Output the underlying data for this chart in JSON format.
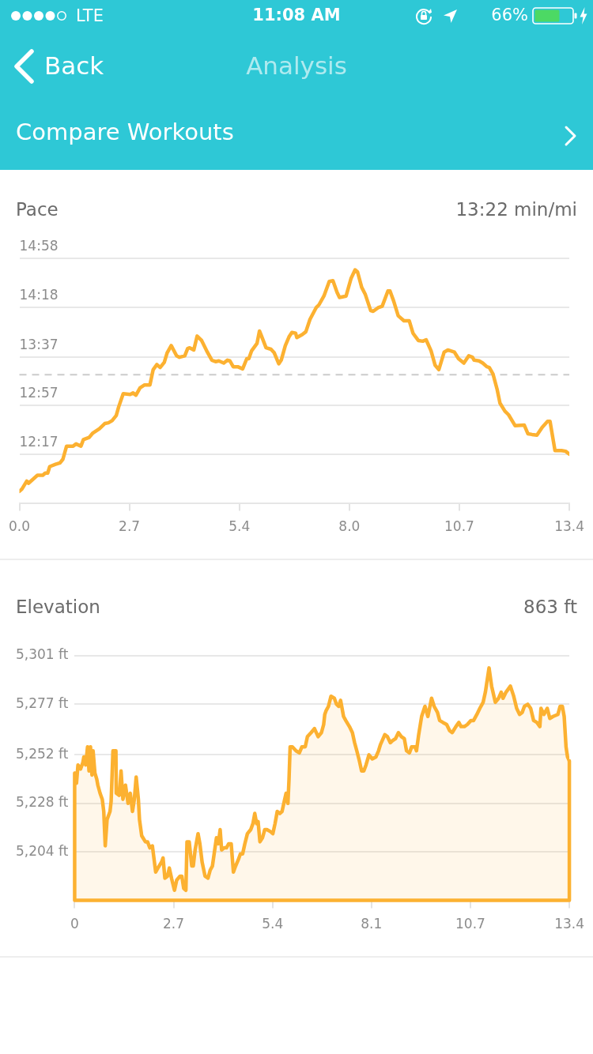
{
  "chart_data": [
    {
      "type": "line",
      "title": "Pace",
      "subtitle": "13:22 min/mi",
      "annotations": [
        "LTE",
        "11:08 AM",
        "66%",
        "Back",
        "Analysis",
        "Compare Workouts"
      ],
      "x": [
        0,
        0.06,
        0.18,
        0.22,
        0.44,
        0.57,
        0.63,
        0.69,
        0.74,
        0.88,
        0.99,
        1.06,
        1.15,
        1.31,
        1.38,
        1.5,
        1.56,
        1.7,
        1.79,
        1.95,
        2.08,
        2.17,
        2.26,
        2.36,
        2.42,
        2.53,
        2.7,
        2.77,
        2.84,
        2.94,
        3.05,
        3.18,
        3.26,
        3.35,
        3.43,
        3.53,
        3.6,
        3.7,
        3.83,
        3.9,
        4.03,
        4.1,
        4.15,
        4.25,
        4.33,
        4.44,
        4.58,
        4.69,
        4.78,
        4.86,
        4.98,
        5.07,
        5.13,
        5.21,
        5.32,
        5.44,
        5.54,
        5.59,
        5.66,
        5.79,
        5.85,
        5.9,
        6.01,
        6.13,
        6.21,
        6.32,
        6.38,
        6.48,
        6.57,
        6.64,
        6.73,
        6.76,
        6.89,
        6.98,
        7.08,
        7.23,
        7.3,
        7.42,
        7.55,
        7.64,
        7.74,
        7.8,
        7.96,
        8.08,
        8.18,
        8.24,
        8.34,
        8.43,
        8.56,
        8.62,
        8.74,
        8.84,
        8.98,
        9.03,
        9.12,
        9.23,
        9.37,
        9.5,
        9.59,
        9.72,
        9.83,
        9.91,
        10.03,
        10.13,
        10.22,
        10.35,
        10.44,
        10.6,
        10.7,
        10.83,
        10.95,
        11.04,
        11.08,
        11.2,
        11.29,
        11.39,
        11.45,
        11.54,
        11.64,
        11.71,
        11.83,
        11.92,
        12.08,
        12.3,
        12.39,
        12.49,
        12.61,
        12.74,
        12.87,
        12.93,
        13.05,
        13.21,
        13.31,
        13.4
      ],
      "values": [
        11.77,
        11.8,
        11.91,
        11.88,
        11.99,
        11.99,
        12.02,
        12.02,
        12.11,
        12.14,
        12.16,
        12.21,
        12.39,
        12.39,
        12.42,
        12.39,
        12.48,
        12.51,
        12.57,
        12.63,
        12.7,
        12.71,
        12.74,
        12.81,
        12.93,
        13.11,
        13.1,
        13.12,
        13.09,
        13.19,
        13.23,
        13.23,
        13.44,
        13.51,
        13.47,
        13.54,
        13.67,
        13.77,
        13.63,
        13.61,
        13.63,
        13.73,
        13.74,
        13.71,
        13.9,
        13.84,
        13.68,
        13.57,
        13.55,
        13.56,
        13.53,
        13.57,
        13.56,
        13.48,
        13.48,
        13.45,
        13.59,
        13.59,
        13.7,
        13.8,
        13.97,
        13.9,
        13.74,
        13.72,
        13.67,
        13.52,
        13.57,
        13.77,
        13.89,
        13.95,
        13.94,
        13.88,
        13.92,
        13.96,
        14.13,
        14.29,
        14.33,
        14.45,
        14.65,
        14.66,
        14.5,
        14.43,
        14.45,
        14.69,
        14.81,
        14.78,
        14.57,
        14.47,
        14.25,
        14.24,
        14.29,
        14.31,
        14.52,
        14.52,
        14.38,
        14.18,
        14.11,
        14.11,
        13.94,
        13.84,
        13.83,
        13.85,
        13.7,
        13.5,
        13.44,
        13.68,
        13.71,
        13.68,
        13.59,
        13.53,
        13.63,
        13.61,
        13.57,
        13.56,
        13.53,
        13.48,
        13.47,
        13.38,
        13.17,
        12.98,
        12.87,
        12.82,
        12.67,
        12.68,
        12.56,
        12.55,
        12.54,
        12.65,
        12.73,
        12.73,
        12.33,
        12.33,
        12.32,
        12.28
      ],
      "color": "#fcb131",
      "xlim": [
        0,
        13.4
      ],
      "xticks": [
        {
          "value": 0,
          "label": "0.0"
        },
        {
          "value": 2.68,
          "label": "2.7"
        },
        {
          "value": 5.36,
          "label": "5.4"
        },
        {
          "value": 8.04,
          "label": "8.0"
        },
        {
          "value": 10.72,
          "label": "10.7"
        },
        13.4
      ],
      "ylim": [
        11.61,
        14.967
      ],
      "yticks": [
        {
          "value": 14.967,
          "label": "14:58"
        },
        {
          "value": 14.3,
          "label": "14:18"
        },
        {
          "value": 13.617,
          "label": "13:37"
        },
        {
          "value": 12.95,
          "label": "12:57"
        },
        {
          "value": 12.283,
          "label": "12:17"
        }
      ],
      "grid": "y",
      "ref_lines": [
        {
          "axis": "y",
          "value": 13.37,
          "color": "#cccccc",
          "line_style": "dashed"
        }
      ]
    },
    {
      "type": "area",
      "title": "Elevation",
      "subtitle": "863 ft",
      "x": [
        0,
        0.05,
        0.09,
        0.16,
        0.22,
        0.25,
        0.3,
        0.35,
        0.39,
        0.43,
        0.47,
        0.5,
        0.55,
        0.6,
        0.63,
        0.69,
        0.75,
        0.79,
        0.83,
        0.88,
        0.96,
        0.99,
        1.04,
        1.12,
        1.13,
        1.21,
        1.26,
        1.31,
        1.38,
        1.45,
        1.51,
        1.57,
        1.62,
        1.67,
        1.73,
        1.76,
        1.82,
        1.92,
        1.98,
        2.04,
        2.11,
        2.2,
        2.26,
        2.36,
        2.4,
        2.45,
        2.52,
        2.57,
        2.63,
        2.71,
        2.77,
        2.86,
        2.91,
        2.96,
        3.02,
        3.05,
        3.11,
        3.18,
        3.22,
        3.27,
        3.35,
        3.4,
        3.46,
        3.54,
        3.62,
        3.68,
        3.74,
        3.81,
        3.85,
        3.9,
        3.95,
        3.99,
        4.06,
        4.12,
        4.18,
        4.25,
        4.31,
        4.37,
        4.44,
        4.5,
        4.56,
        4.62,
        4.69,
        4.78,
        4.84,
        4.89,
        4.94,
        4.98,
        5.03,
        5.1,
        5.16,
        5.22,
        5.32,
        5.38,
        5.44,
        5.5,
        5.57,
        5.63,
        5.69,
        5.74,
        5.79,
        5.82,
        5.85,
        5.91,
        6.01,
        6.1,
        6.17,
        6.26,
        6.32,
        6.42,
        6.51,
        6.61,
        6.7,
        6.76,
        6.79,
        6.83,
        6.89,
        6.96,
        7.05,
        7.11,
        7.17,
        7.22,
        7.3,
        7.36,
        7.46,
        7.54,
        7.6,
        7.66,
        7.73,
        7.79,
        7.85,
        7.91,
        7.99,
        8.08,
        8.18,
        8.25,
        8.3,
        8.42,
        8.49,
        8.57,
        8.63,
        8.71,
        8.79,
        8.87,
        8.95,
        9.01,
        9.09,
        9.15,
        9.24,
        9.28,
        9.34,
        9.42,
        9.51,
        9.59,
        9.69,
        9.76,
        9.85,
        9.91,
        10,
        10.1,
        10.18,
        10.25,
        10.35,
        10.43,
        10.49,
        10.58,
        10.66,
        10.76,
        10.83,
        10.92,
        11,
        11.09,
        11.15,
        11.25,
        11.32,
        11.42,
        11.51,
        11.58,
        11.63,
        11.71,
        11.83,
        11.92,
        12,
        12.08,
        12.15,
        12.21,
        12.3,
        12.38,
        12.46,
        12.55,
        12.63,
        12.66,
        12.74,
        12.83,
        12.9,
        12.99,
        13.12,
        13.18,
        13.24,
        13.29,
        13.34,
        13.38,
        13.43
      ],
      "values": [
        5243,
        5238,
        5247,
        5245,
        5248,
        5251,
        5247,
        5256,
        5244,
        5256,
        5242,
        5254,
        5243,
        5240,
        5237,
        5233,
        5230,
        5224,
        5207,
        5220,
        5224,
        5229,
        5254,
        5254,
        5233,
        5232,
        5244,
        5230,
        5237,
        5228,
        5233,
        5224,
        5230,
        5241,
        5230,
        5220,
        5212,
        5209,
        5209,
        5206,
        5207,
        5194,
        5196,
        5199,
        5201,
        5191,
        5192,
        5196,
        5191,
        5185,
        5190,
        5192,
        5192,
        5186,
        5185,
        5209,
        5209,
        5197,
        5197,
        5205,
        5213,
        5208,
        5199,
        5192,
        5191,
        5195,
        5197,
        5206,
        5211,
        5208,
        5215,
        5205,
        5206,
        5206,
        5208,
        5208,
        5194,
        5197,
        5200,
        5203,
        5203,
        5208,
        5213,
        5215,
        5218,
        5223,
        5218,
        5219,
        5209,
        5211,
        5215,
        5215,
        5214,
        5213,
        5218,
        5224,
        5223,
        5224,
        5229,
        5233,
        5228,
        5240,
        5256,
        5256,
        5254,
        5253,
        5256,
        5256,
        5261,
        5263,
        5265,
        5261,
        5263,
        5267,
        5272,
        5274,
        5276,
        5281,
        5280,
        5277,
        5276,
        5279,
        5271,
        5269,
        5266,
        5263,
        5258,
        5254,
        5249,
        5244,
        5244,
        5247,
        5252,
        5250,
        5251,
        5254,
        5257,
        5262,
        5261,
        5258,
        5259,
        5260,
        5263,
        5261,
        5260,
        5254,
        5253,
        5256,
        5256,
        5254,
        5262,
        5271,
        5276,
        5271,
        5280,
        5276,
        5273,
        5269,
        5268,
        5267,
        5264,
        5263,
        5266,
        5268,
        5266,
        5266,
        5267,
        5269,
        5269,
        5272,
        5275,
        5278,
        5283,
        5295,
        5286,
        5278,
        5280,
        5283,
        5280,
        5283,
        5286,
        5281,
        5275,
        5272,
        5273,
        5276,
        5277,
        5275,
        5269,
        5268,
        5266,
        5275,
        5272,
        5275,
        5270,
        5271,
        5272,
        5276,
        5276,
        5271,
        5256,
        5251,
        5249
      ],
      "color": "#fcb131",
      "xlim": [
        0,
        13.43
      ],
      "xticks": [
        0,
        {
          "value": 2.686,
          "label": "2.7"
        },
        {
          "value": 5.372,
          "label": "5.4"
        },
        {
          "value": 8.058,
          "label": "8.1"
        },
        {
          "value": 10.744,
          "label": "10.7"
        },
        {
          "value": 13.43,
          "label": "13.4"
        }
      ],
      "ylim": [
        5180,
        5301
      ],
      "yticks": [
        {
          "value": 5301,
          "label": "5,301 ft"
        },
        {
          "value": 5277,
          "label": "5,277 ft"
        },
        {
          "value": 5252,
          "label": "5,252 ft"
        },
        {
          "value": 5228,
          "label": "5,228 ft"
        },
        {
          "value": 5204,
          "label": "5,204 ft"
        }
      ],
      "grid": "y"
    }
  ]
}
